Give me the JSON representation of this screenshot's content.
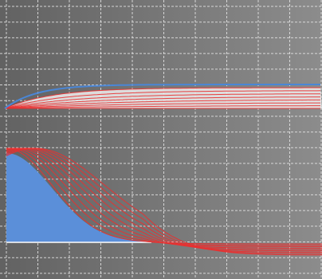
{
  "display": {
    "background_left": "#626262",
    "background_right": "#8c8c8c",
    "grid_color": "#e6e6e6",
    "grid_style": "dashed",
    "grid_columns": 10,
    "grid_rows": 17
  },
  "traces": {
    "upper_band": {
      "reference_color": "#4a86d6",
      "curve_color": "#e83030",
      "fill_color": "#e8e8e8",
      "curve_count": 8
    },
    "lower_waveform": {
      "fill_color": "#5b8fd9",
      "curve_color": "#e83030",
      "baseline_color": "#ffffff",
      "curve_count": 9
    }
  }
}
